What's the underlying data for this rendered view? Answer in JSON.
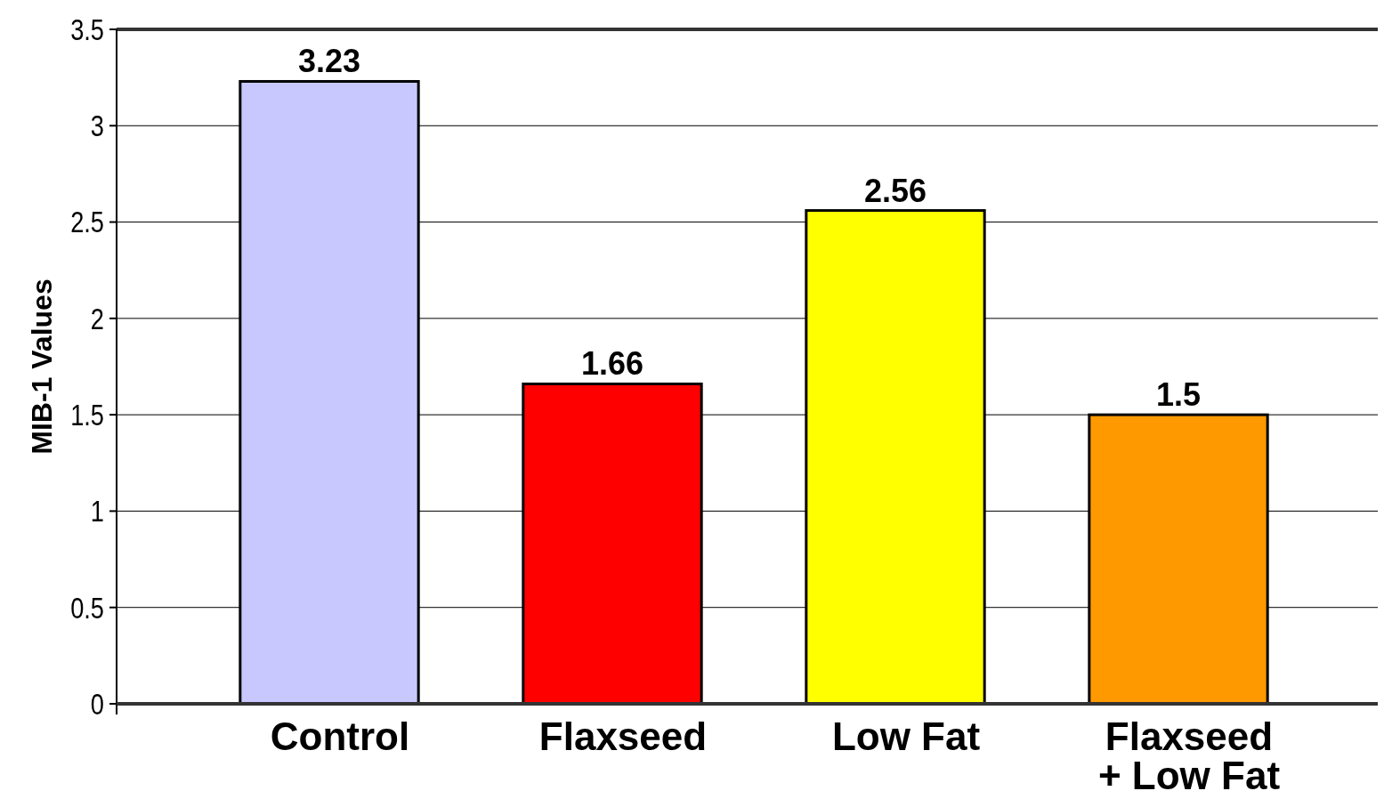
{
  "chart_data": {
    "type": "bar",
    "ylabel": "MIB-1 Values",
    "categories": [
      "Control",
      "Flaxseed",
      "Low Fat",
      "Flaxseed + Low Fat"
    ],
    "values": [
      3.23,
      1.66,
      2.56,
      1.5
    ],
    "colors": [
      "#c8c8ff",
      "#ff0000",
      "#ffff00",
      "#ff9900"
    ],
    "ylim": [
      0,
      3.5
    ],
    "yticks": [
      0,
      0.5,
      1,
      1.5,
      2,
      2.5,
      3,
      3.5
    ],
    "grid": "y",
    "data_labels": true
  }
}
